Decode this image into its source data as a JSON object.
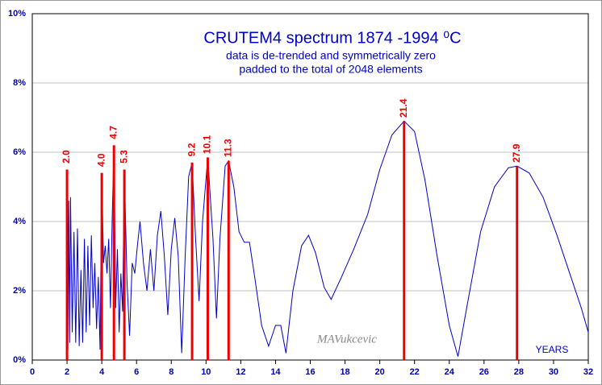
{
  "chart_data": {
    "type": "line",
    "title": "CRUTEM4 spectrum  1874 -1994  ⁰C",
    "subtitle": [
      "data is de-trended and symmetrically zero",
      "padded to the total of 2048 elements"
    ],
    "annotations": [
      "MAVukcevic",
      "YEARS"
    ],
    "xlim": [
      0,
      32
    ],
    "xticks": [
      0,
      2,
      4,
      6,
      8,
      10,
      12,
      14,
      16,
      18,
      20,
      22,
      24,
      26,
      28,
      30,
      32
    ],
    "ylim": [
      0,
      10
    ],
    "yticks": [
      {
        "value": 0,
        "label": "0%"
      },
      {
        "value": 2,
        "label": "2%"
      },
      {
        "value": 4,
        "label": "4%"
      },
      {
        "value": 6,
        "label": "6%"
      },
      {
        "value": 8,
        "label": "8%"
      },
      {
        "value": 10,
        "label": "10%"
      }
    ],
    "grid": true,
    "series": [
      {
        "color": "#0000cc",
        "x": [
          2.0,
          2.05,
          2.1,
          2.15,
          2.2,
          2.3,
          2.4,
          2.5,
          2.6,
          2.7,
          2.8,
          2.9,
          3.0,
          3.1,
          3.2,
          3.3,
          3.4,
          3.5,
          3.6,
          3.7,
          3.8,
          3.9,
          4.0,
          4.1,
          4.2,
          4.3,
          4.4,
          4.5,
          4.6,
          4.7,
          4.8,
          4.9,
          5.0,
          5.1,
          5.2,
          5.3,
          5.45,
          5.6,
          5.75,
          5.9,
          6.05,
          6.2,
          6.4,
          6.6,
          6.8,
          7.0,
          7.2,
          7.4,
          7.6,
          7.8,
          8.0,
          8.2,
          8.4,
          8.6,
          8.8,
          9.0,
          9.2,
          9.4,
          9.6,
          9.8,
          10.1,
          10.4,
          10.6,
          10.8,
          11.1,
          11.3,
          11.6,
          11.9,
          12.2,
          12.5,
          12.8,
          13.2,
          13.6,
          14.0,
          14.3,
          14.6,
          15.0,
          15.5,
          15.9,
          16.3,
          16.8,
          17.2,
          17.8,
          18.5,
          19.3,
          20.0,
          20.7,
          21.4,
          22.0,
          22.6,
          23.3,
          24.0,
          24.5,
          25.0,
          25.8,
          26.6,
          27.4,
          27.9,
          28.6,
          29.4,
          30.2,
          31.0,
          31.6,
          32.0
        ],
        "values": [
          5.5,
          0.3,
          4.6,
          0.5,
          4.7,
          0.8,
          3.7,
          0.5,
          3.8,
          0.4,
          2.6,
          0.5,
          3.5,
          0.8,
          3.3,
          1.0,
          3.6,
          1.5,
          2.8,
          0.9,
          2.4,
          0.3,
          5.4,
          2.8,
          3.3,
          2.5,
          3.5,
          1.5,
          4.1,
          6.2,
          1.5,
          3.2,
          0.8,
          2.5,
          1.4,
          5.5,
          2.3,
          0.7,
          2.8,
          2.5,
          3.3,
          4.0,
          2.8,
          2.0,
          3.2,
          2.0,
          3.6,
          4.3,
          3.0,
          1.3,
          3.2,
          4.1,
          3.0,
          0.2,
          3.0,
          5.3,
          5.7,
          3.5,
          1.7,
          4.0,
          5.85,
          3.5,
          1.2,
          3.5,
          5.6,
          5.75,
          5.0,
          3.7,
          3.4,
          3.4,
          2.4,
          1.0,
          0.4,
          1.0,
          1.0,
          0.2,
          2.0,
          3.3,
          3.6,
          3.1,
          2.1,
          1.75,
          2.4,
          3.2,
          4.2,
          5.5,
          6.5,
          6.9,
          6.6,
          5.2,
          3.0,
          1.0,
          0.1,
          1.5,
          3.7,
          5.0,
          5.55,
          5.6,
          5.4,
          4.7,
          3.6,
          2.4,
          1.5,
          0.8
        ]
      },
      {
        "color": "#ee0000",
        "x": [
          2.0,
          4.0,
          4.7,
          5.3,
          9.2,
          10.1,
          11.3,
          21.4,
          27.9
        ],
        "x_labels": [
          "2.0",
          "4.0",
          "4.7",
          "5.3",
          "9.2",
          "10.1",
          "11.3",
          "21.4",
          "27.9"
        ],
        "values": [
          5.5,
          5.4,
          6.2,
          5.5,
          5.7,
          5.85,
          5.75,
          6.9,
          5.6
        ]
      }
    ]
  }
}
